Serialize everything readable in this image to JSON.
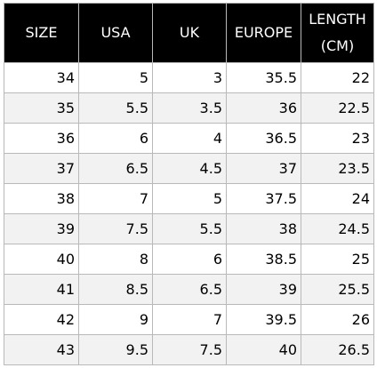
{
  "table": {
    "headers": [
      {
        "line1": "SIZE",
        "line2": ""
      },
      {
        "line1": "USA",
        "line2": ""
      },
      {
        "line1": "UK",
        "line2": ""
      },
      {
        "line1": "EUROPE",
        "line2": ""
      },
      {
        "line1": "LENGTH",
        "line2": "(CM)"
      }
    ],
    "rows": [
      [
        "34",
        "5",
        "3",
        "35.5",
        "22"
      ],
      [
        "35",
        "5.5",
        "3.5",
        "36",
        "22.5"
      ],
      [
        "36",
        "6",
        "4",
        "36.5",
        "23"
      ],
      [
        "37",
        "6.5",
        "4.5",
        "37",
        "23.5"
      ],
      [
        "38",
        "7",
        "5",
        "37.5",
        "24"
      ],
      [
        "39",
        "7.5",
        "5.5",
        "38",
        "24.5"
      ],
      [
        "40",
        "8",
        "6",
        "38.5",
        "25"
      ],
      [
        "41",
        "8.5",
        "6.5",
        "39",
        "25.5"
      ],
      [
        "42",
        "9",
        "7",
        "39.5",
        "26"
      ],
      [
        "43",
        "9.5",
        "7.5",
        "40",
        "26.5"
      ]
    ]
  }
}
